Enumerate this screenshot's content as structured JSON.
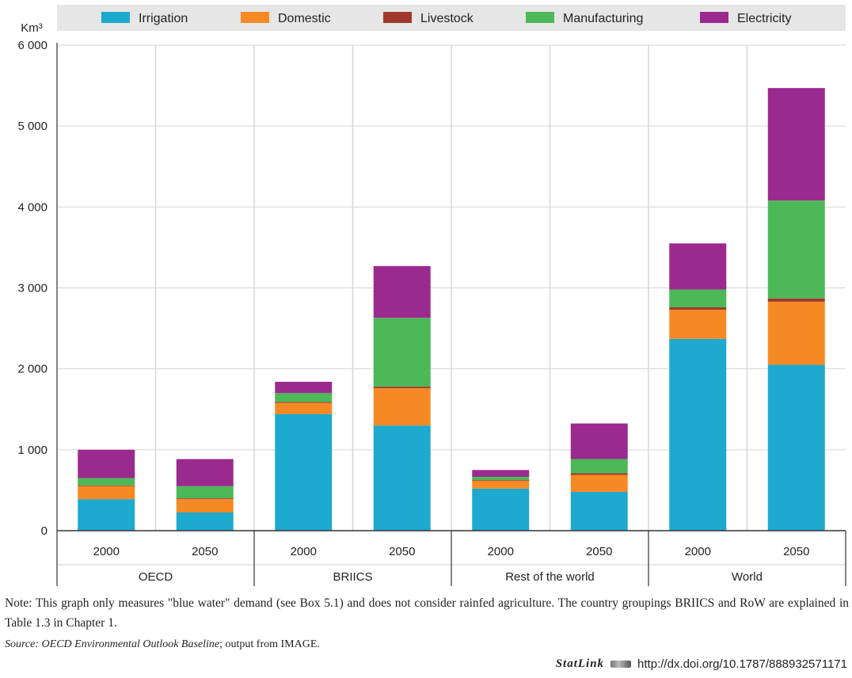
{
  "chart_data": {
    "type": "bar",
    "stacked": true,
    "ylabel": "Km³",
    "ylim": [
      0,
      6000
    ],
    "yticks": [
      0,
      1000,
      2000,
      3000,
      4000,
      5000,
      6000
    ],
    "ytick_labels": [
      "0",
      "1 000",
      "2 000",
      "3 000",
      "4 000",
      "5 000",
      "6 000"
    ],
    "grid": "horizontal",
    "legend_position": "top",
    "groups": [
      {
        "label": "OECD",
        "categories": [
          "2000",
          "2050"
        ]
      },
      {
        "label": "BRIICS",
        "categories": [
          "2000",
          "2050"
        ]
      },
      {
        "label": "Rest of the world",
        "categories": [
          "2000",
          "2050"
        ]
      },
      {
        "label": "World",
        "categories": [
          "2000",
          "2050"
        ]
      }
    ],
    "categories": [
      "OECD 2000",
      "OECD 2050",
      "BRIICS 2000",
      "BRIICS 2050",
      "Rest of the world 2000",
      "Rest of the world 2050",
      "World 2000",
      "World 2050"
    ],
    "series": [
      {
        "name": "Irrigation",
        "color": "#1ea9cf",
        "values": [
          390,
          225,
          1440,
          1300,
          520,
          480,
          2370,
          2050
        ]
      },
      {
        "name": "Domestic",
        "color": "#f58a25",
        "values": [
          160,
          165,
          140,
          460,
          95,
          210,
          360,
          780
        ]
      },
      {
        "name": "Livestock",
        "color": "#a0392b",
        "values": [
          10,
          10,
          10,
          20,
          10,
          20,
          30,
          40
        ]
      },
      {
        "name": "Manufacturing",
        "color": "#4cb857",
        "values": [
          90,
          150,
          110,
          850,
          40,
          175,
          220,
          1210
        ]
      },
      {
        "name": "Electricity",
        "color": "#9b2a8f",
        "values": [
          350,
          335,
          140,
          640,
          85,
          440,
          570,
          1390
        ]
      }
    ]
  },
  "note": "Note: This graph only measures \"blue water\" demand (see Box 5.1) and does not consider rainfed agriculture. The country groupings BRIICS and RoW are explained in Table 1.3 in Chapter 1.",
  "source_label": "Source:",
  "source_title": "OECD Environmental Outlook Baseline",
  "source_rest": "; output from IMAGE.",
  "statlink_brand": "StatLink",
  "statlink_url": "http://dx.doi.org/10.1787/888932571171"
}
